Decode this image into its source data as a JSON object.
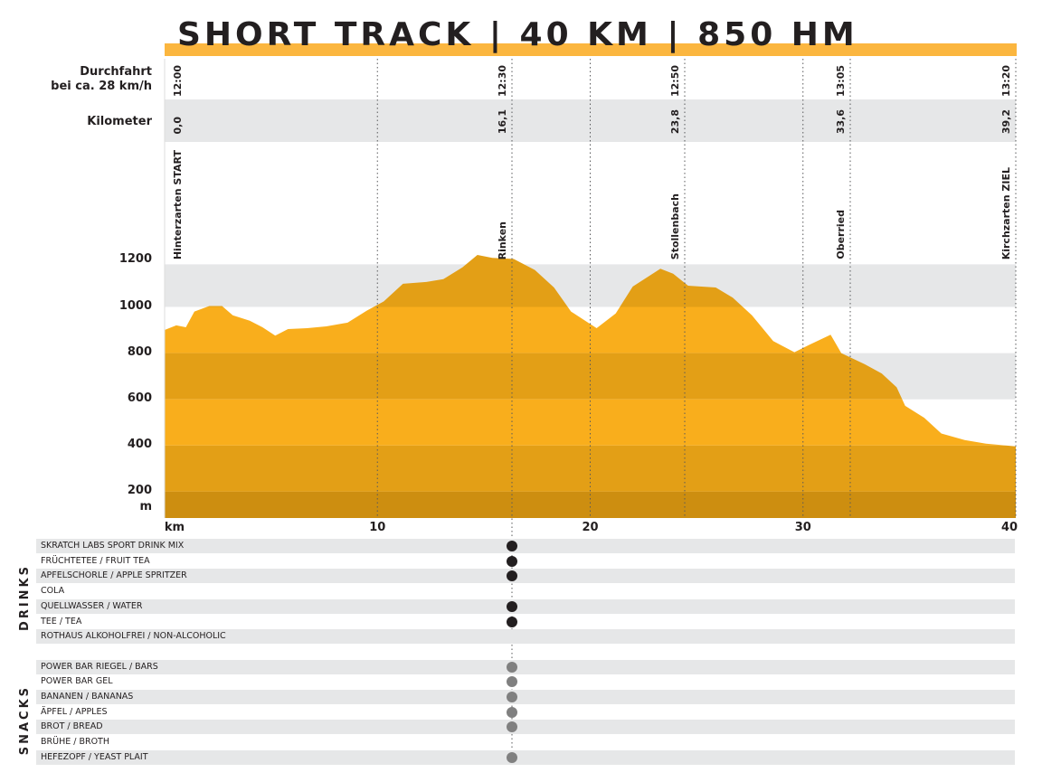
{
  "title": "SHORT TRACK | 40 KM | 850 HM",
  "row_labels": {
    "time_line1": "Durchfahrt",
    "time_line2": "bei ca. 28 km/h",
    "km": "Kilometer"
  },
  "stations": [
    {
      "name": "Hinterzarten START",
      "time": "12:00",
      "km": "0,0"
    },
    {
      "name": "Rinken",
      "time": "12:30",
      "km": "16,1"
    },
    {
      "name": "Stollenbach",
      "time": "12:50",
      "km": "23,8"
    },
    {
      "name": "Oberried",
      "time": "13:05",
      "km": "33,6"
    },
    {
      "name": "Kirchzarten ZIEL",
      "time": "13:20",
      "km": "39,2"
    }
  ],
  "chart_data": {
    "type": "area",
    "title": "SHORT TRACK | 40 KM | 850 HM",
    "xlabel": "km",
    "ylabel": "m",
    "xlim": [
      0,
      40
    ],
    "ylim": [
      85,
      1200
    ],
    "x_ticks": [
      "10",
      "20",
      "30",
      "40"
    ],
    "y_ticks": [
      "1200",
      "1000",
      "800",
      "600",
      "400",
      "200"
    ],
    "x": [
      0,
      0.55,
      1.0,
      1.4,
      2.1,
      2.7,
      3.2,
      4.0,
      4.6,
      5.2,
      5.8,
      6.7,
      7.6,
      8.6,
      9.5,
      10.3,
      11.2,
      12.3,
      13.1,
      14.0,
      14.7,
      15.4,
      16.4,
      17.4,
      18.3,
      19.1,
      20.3,
      21.2,
      22.0,
      23.3,
      23.9,
      24.6,
      25.9,
      26.7,
      27.6,
      28.6,
      29.6,
      30.3,
      31.3,
      31.8,
      32.9,
      33.7,
      34.4,
      34.8,
      35.7,
      36.5,
      37.6,
      38.6,
      40.0
    ],
    "elevation": [
      900,
      920,
      912,
      980,
      1004,
      1004,
      964,
      940,
      912,
      876,
      904,
      908,
      916,
      932,
      984,
      1024,
      1100,
      1108,
      1120,
      1172,
      1225,
      1212,
      1208,
      1160,
      1084,
      980,
      908,
      972,
      1088,
      1165,
      1144,
      1092,
      1084,
      1040,
      964,
      852,
      804,
      836,
      880,
      800,
      752,
      712,
      652,
      572,
      520,
      452,
      424,
      408,
      396
    ]
  },
  "table": {
    "sections": [
      {
        "label": "DRINKS",
        "items": [
          {
            "name": "SKRATCH LABS SPORT DRINK MIX",
            "available": true
          },
          {
            "name": "FRÜCHTETEE / FRUIT TEA",
            "available": true
          },
          {
            "name": "APFELSCHORLE / APPLE SPRITZER",
            "available": true
          },
          {
            "name": "COLA",
            "available": false
          },
          {
            "name": "QUELLWASSER / WATER",
            "available": true
          },
          {
            "name": "TEE / TEA",
            "available": true
          },
          {
            "name": "ROTHAUS ALKOHOLFREI / NON-ALCOHOLIC",
            "available": false
          }
        ]
      },
      {
        "label": "SNACKS",
        "items": [
          {
            "name": "POWER BAR RIEGEL / BARS",
            "available": true
          },
          {
            "name": "POWER BAR GEL",
            "available": true
          },
          {
            "name": "BANANEN / BANANAS",
            "available": true
          },
          {
            "name": "ÄPFEL / APPLES",
            "available": true
          },
          {
            "name": "BROT / BREAD",
            "available": true
          },
          {
            "name": "BRÜHE / BROTH",
            "available": false
          },
          {
            "name": "HEFEZOPF / YEAST PLAIT",
            "available": true
          }
        ]
      }
    ]
  },
  "colors": {
    "accent": "#fbb63f",
    "fill_light": "#f9ae1c",
    "fill_dark": "#e39f16",
    "fill_darkest": "#cd8e10",
    "band_gray": "#e6e7e8",
    "drink_dot": "#231f20",
    "snack_dot": "#808080"
  }
}
